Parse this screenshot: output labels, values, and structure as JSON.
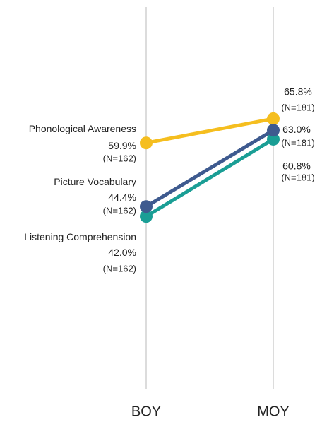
{
  "chart_data": {
    "type": "line",
    "categories": [
      "BOY",
      "MOY"
    ],
    "ylim": [
      0,
      93
    ],
    "series": [
      {
        "name": "Phonological Awareness",
        "color": "#f5be1f",
        "values": [
          59.9,
          65.8
        ],
        "value_labels": [
          "59.9%",
          "65.8%"
        ],
        "n_labels": [
          "(N=162)",
          "(N=181)"
        ]
      },
      {
        "name": "Picture Vocabulary",
        "color": "#3e5a8f",
        "values": [
          44.4,
          63.0
        ],
        "value_labels": [
          "44.4%",
          "63.0%"
        ],
        "n_labels": [
          "(N=162)",
          "(N=181)"
        ]
      },
      {
        "name": "Listening Comprehension",
        "color": "#1a9e95",
        "values": [
          42.0,
          60.8
        ],
        "value_labels": [
          "42.0%",
          "60.8%"
        ],
        "n_labels": [
          "(N=162)",
          "(N=181)"
        ]
      }
    ]
  }
}
